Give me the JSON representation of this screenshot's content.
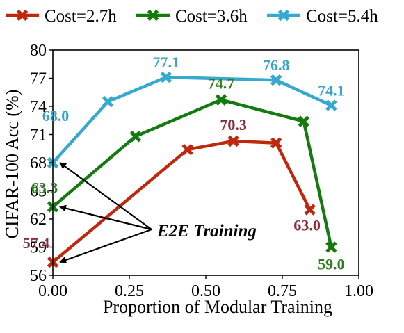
{
  "chart_data": {
    "type": "line",
    "title": "",
    "xlabel": "Proportion of Modular Training",
    "ylabel": "CIFAR-100 Acc (%)",
    "xlim": [
      0,
      1.0
    ],
    "ylim": [
      56,
      80
    ],
    "x_ticks": [
      "0.00",
      "0.25",
      "0.50",
      "0.75",
      "1.00"
    ],
    "y_ticks": [
      "56",
      "59",
      "62",
      "65",
      "68",
      "71",
      "74",
      "77",
      "80"
    ],
    "grid": false,
    "legend_position": "top",
    "series": [
      {
        "name": "Cost=2.7h",
        "color": "#c0280e",
        "label_color": "#8b2b3a",
        "marker": "x-mark",
        "x": [
          0.0,
          0.44,
          0.59,
          0.73,
          0.84
        ],
        "y": [
          57.4,
          69.4,
          70.3,
          70.1,
          63.0
        ]
      },
      {
        "name": "Cost=3.6h",
        "color": "#157a10",
        "label_color": "#2e7d1f",
        "marker": "x-mark",
        "x": [
          0.0,
          0.27,
          0.55,
          0.82,
          0.91
        ],
        "y": [
          63.3,
          70.8,
          74.7,
          72.4,
          59.0
        ]
      },
      {
        "name": "Cost=5.4h",
        "color": "#36a9cf",
        "label_color": "#3aa3c9",
        "marker": "x-mark",
        "x": [
          0.0,
          0.18,
          0.37,
          0.73,
          0.91
        ],
        "y": [
          68.0,
          74.5,
          77.1,
          76.8,
          74.1
        ]
      }
    ],
    "data_labels": [
      {
        "series": 0,
        "point": 0,
        "text": "57.4"
      },
      {
        "series": 0,
        "point": 2,
        "text": "70.3"
      },
      {
        "series": 0,
        "point": 4,
        "text": "63.0"
      },
      {
        "series": 1,
        "point": 0,
        "text": "63.3"
      },
      {
        "series": 1,
        "point": 2,
        "text": "74.7"
      },
      {
        "series": 1,
        "point": 4,
        "text": "59.0"
      },
      {
        "series": 2,
        "point": 0,
        "text": "68.0"
      },
      {
        "series": 2,
        "point": 2,
        "text": "77.1"
      },
      {
        "series": 2,
        "point": 3,
        "text": "76.8"
      },
      {
        "series": 2,
        "point": 4,
        "text": "74.1"
      }
    ],
    "annotation": {
      "text": "E2E Training",
      "arrow_targets": [
        {
          "series": 2,
          "point": 0
        },
        {
          "series": 1,
          "point": 0
        },
        {
          "series": 0,
          "point": 0
        }
      ]
    }
  }
}
